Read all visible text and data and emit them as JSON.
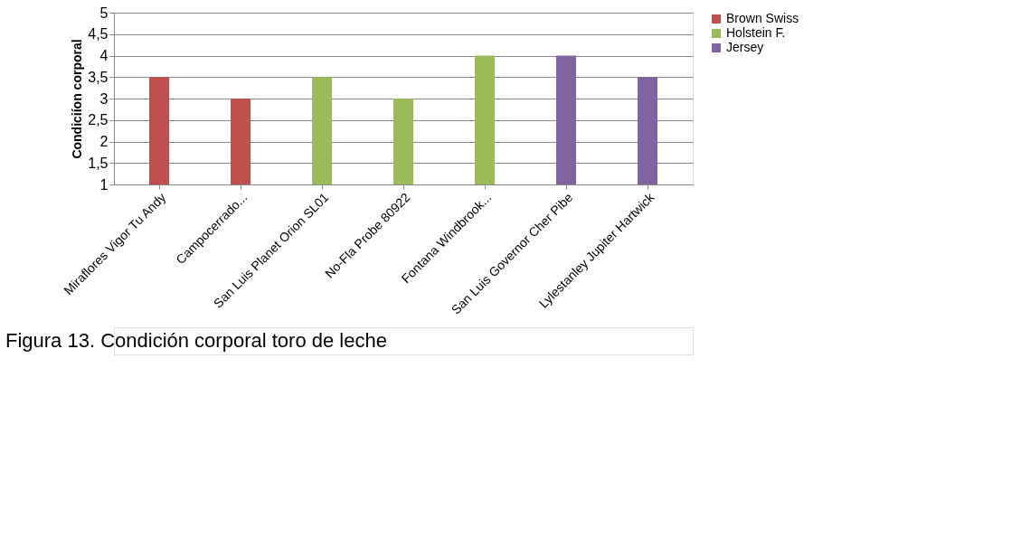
{
  "chart_data": {
    "type": "bar",
    "ylabel": "Condiciíon corporal",
    "categories": [
      "Miraflores Vigor Tu Andy",
      "Campocerrado...",
      "San Luis Planet Orion SL01",
      "No-Fla Probe 80922",
      "Fontana Windbrook...",
      "San Luis Governor Cher Pibe",
      "Lylestanley Jupiter Hartwick"
    ],
    "series": [
      {
        "name": "Brown Swiss",
        "color": "#c0504d",
        "values": [
          3.5,
          3,
          null,
          null,
          null,
          null,
          null
        ]
      },
      {
        "name": "Holstein F.",
        "color": "#9bbb59",
        "values": [
          null,
          null,
          3.5,
          3,
          4,
          null,
          null
        ]
      },
      {
        "name": "Jersey",
        "color": "#8064a2",
        "values": [
          null,
          null,
          null,
          null,
          null,
          4,
          3.5
        ]
      }
    ],
    "ylim": [
      1,
      5
    ],
    "yticks": [
      1,
      {
        "value": 1.5,
        "label": "1,5"
      },
      2,
      {
        "value": 2.5,
        "label": "2,5"
      },
      3,
      {
        "value": 3.5,
        "label": "3,5"
      },
      4,
      {
        "value": 4.5,
        "label": "4,5"
      },
      5
    ],
    "grid": "y",
    "legend": "right",
    "annotations": [
      "Figura 13. Condición corporal toro de leche"
    ]
  }
}
